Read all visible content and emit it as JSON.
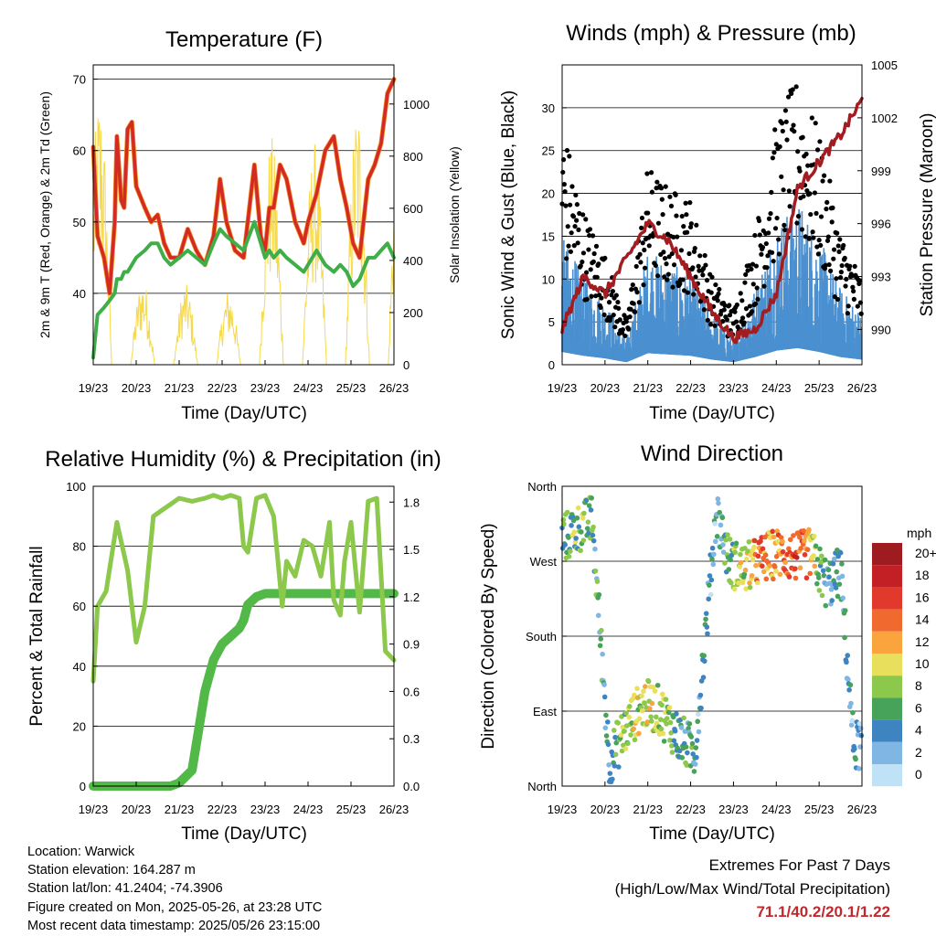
{
  "panels": {
    "temperature": {
      "title": "Temperature (F)",
      "xlabel": "Time (Day/UTC)",
      "ylabel_left": "2m & 9m T (Red, Orange) & 2m Td (Green)",
      "ylabel_right": "Solar Insolation (Yellow)"
    },
    "wind": {
      "title": "Winds (mph) & Pressure (mb)",
      "xlabel": "Time (Day/UTC)",
      "ylabel_left": "Sonic Wind & Gust (Blue, Black)",
      "ylabel_right": "Station Pressure (Maroon)"
    },
    "humidity": {
      "title": "Relative Humidity (%) & Precipitation (in)",
      "xlabel": "Time (Day/UTC)",
      "ylabel_left": "Percent & Total Rainfall"
    },
    "direction": {
      "title": "Wind Direction",
      "xlabel": "Time (Day/UTC)",
      "ylabel_left": "Direction (Colored By Speed)",
      "colorbar_title": "mph",
      "colorbar_labels": [
        "20+",
        "18",
        "16",
        "14",
        "12",
        "10",
        "8",
        "6",
        "4",
        "2",
        "0"
      ],
      "colorbar_colors": [
        "#9e1b1f",
        "#c32026",
        "#e13a2c",
        "#f0692e",
        "#f9a43c",
        "#e8e05c",
        "#8cc84b",
        "#47a35a",
        "#3d84c1",
        "#7fb6e4",
        "#bfe2f7"
      ]
    }
  },
  "info": {
    "location": "Location: Warwick",
    "elevation": "Station elevation: 164.287 m",
    "latlon": "Station lat/lon: 41.2404; -74.3906",
    "created": "Figure created on Mon, 2025-05-26, at 23:28 UTC",
    "recent": "Most recent data timestamp: 2025/05/26 23:15:00"
  },
  "extremes": {
    "title": "Extremes For Past 7 Days",
    "subtitle": "(High/Low/Max Wind/Total Precipitation)",
    "values": "71.1/40.2/20.1/1.22"
  },
  "colors": {
    "temp_2m": "#d42a24",
    "temp_9m": "#f28a1e",
    "dewpoint": "#3fae49",
    "solar": "#f7d948",
    "gust": "#000000",
    "wind": "#4a90d0",
    "pressure": "#a11d22",
    "rh": "#8cc84b",
    "precip": "#52b848"
  },
  "chart_data": [
    {
      "type": "line",
      "title": "Temperature (F)",
      "xlabel": "Time (Day/UTC)",
      "ylabel": "2m & 9m T (Red, Orange) & 2m Td (Green)",
      "ylabel_right": "Solar Insolation (Yellow)",
      "x_ticks": [
        "19/23",
        "20/23",
        "21/23",
        "22/23",
        "23/23",
        "24/23",
        "25/23",
        "26/23"
      ],
      "ylim": [
        30,
        72
      ],
      "y_ticks": [
        40,
        50,
        60,
        70
      ],
      "y2lim": [
        0,
        1150
      ],
      "y2_ticks": [
        0,
        200,
        400,
        600,
        800,
        1000
      ],
      "grid": true,
      "x_days": [
        0,
        0.1,
        0.25,
        0.38,
        0.5,
        0.55,
        0.65,
        0.72,
        0.8,
        0.9,
        1.0,
        1.2,
        1.35,
        1.5,
        1.65,
        1.8,
        2.0,
        2.2,
        2.4,
        2.6,
        2.8,
        2.95,
        3.1,
        3.3,
        3.5,
        3.75,
        3.9,
        4.0,
        4.1,
        4.2,
        4.35,
        4.5,
        4.7,
        4.9,
        5.0,
        5.2,
        5.4,
        5.6,
        5.75,
        5.9,
        6.05,
        6.2,
        6.4,
        6.55,
        6.7,
        6.85,
        7.0
      ],
      "series": [
        {
          "name": "2m T",
          "values": [
            60.5,
            48,
            45,
            40,
            50,
            62,
            53,
            52,
            63,
            64,
            55,
            52,
            50,
            51,
            47,
            45,
            45,
            49,
            46,
            44,
            48,
            56,
            50,
            46,
            45,
            58,
            48,
            46,
            52,
            52,
            58,
            56,
            50,
            47,
            50,
            54,
            60,
            62,
            56,
            52,
            47,
            45,
            56,
            58,
            61,
            68,
            70
          ]
        },
        {
          "name": "9m T",
          "values": [
            60.5,
            48,
            45,
            40,
            50,
            62,
            53,
            52,
            63,
            64,
            55,
            52,
            50,
            51,
            47,
            45,
            45,
            49,
            46,
            44,
            48,
            56,
            50,
            46,
            45,
            58,
            48,
            46,
            52,
            52,
            58,
            56,
            50,
            47,
            50,
            54,
            60,
            62,
            56,
            52,
            47,
            45,
            56,
            58,
            61,
            68,
            70
          ]
        },
        {
          "name": "2m Td",
          "values": [
            31,
            37,
            38,
            39,
            40,
            42,
            42,
            43,
            43,
            44,
            45,
            46,
            47,
            47,
            45,
            44,
            45,
            46,
            45,
            44,
            47,
            49,
            48,
            47,
            46,
            50,
            47,
            45,
            46,
            45,
            46,
            45,
            44,
            43,
            44,
            46,
            44,
            43,
            44,
            43,
            41,
            42,
            45,
            45,
            46,
            47,
            45
          ]
        }
      ]
    },
    {
      "type": "scatter",
      "title": "Winds (mph) & Pressure (mb)",
      "xlabel": "Time (Day/UTC)",
      "ylabel": "Sonic Wind & Gust (Blue, Black)",
      "ylabel_right": "Station Pressure (Maroon)",
      "x_ticks": [
        "19/23",
        "20/23",
        "21/23",
        "22/23",
        "23/23",
        "24/23",
        "25/23",
        "26/23"
      ],
      "ylim": [
        0,
        35
      ],
      "y_ticks": [
        0,
        5,
        10,
        15,
        20,
        25,
        30
      ],
      "y2lim": [
        988,
        1005
      ],
      "y2_ticks": [
        990,
        993,
        996,
        999,
        1002,
        1005
      ],
      "grid": true,
      "x_days": [
        0,
        0.5,
        1.0,
        1.5,
        2.0,
        2.5,
        3.0,
        3.5,
        4.0,
        4.5,
        5.0,
        5.5,
        6.0,
        6.5,
        7.0
      ],
      "series": [
        {
          "name": "Gust",
          "values": [
            22,
            14,
            10,
            4,
            18,
            16,
            15,
            8,
            5,
            12,
            22,
            26,
            21,
            12,
            8
          ]
        },
        {
          "name": "Wind",
          "values": [
            10,
            7,
            5,
            2,
            9,
            8,
            7,
            4,
            2,
            6,
            11,
            13,
            10,
            6,
            4
          ]
        },
        {
          "name": "Pressure",
          "values": [
            990,
            993,
            992,
            994,
            996,
            995,
            993,
            991,
            989.5,
            990,
            992,
            998,
            999.5,
            1001,
            1003
          ]
        }
      ]
    },
    {
      "type": "line",
      "title": "Relative Humidity (%) & Precipitation (in)",
      "xlabel": "Time (Day/UTC)",
      "ylabel": "Percent & Total Rainfall",
      "x_ticks": [
        "19/23",
        "20/23",
        "21/23",
        "22/23",
        "23/23",
        "24/23",
        "25/23",
        "26/23"
      ],
      "ylim": [
        0,
        100
      ],
      "y_ticks": [
        0,
        20,
        40,
        60,
        80,
        100
      ],
      "y2lim": [
        0,
        1.9
      ],
      "y2_ticks": [
        0.0,
        0.3,
        0.6,
        0.9,
        1.2,
        1.5,
        1.8
      ],
      "grid": true,
      "x_days": [
        0,
        0.1,
        0.3,
        0.55,
        0.8,
        1.0,
        1.2,
        1.4,
        1.6,
        1.8,
        2.0,
        2.3,
        2.6,
        2.8,
        3.0,
        3.2,
        3.4,
        3.5,
        3.6,
        3.8,
        4.0,
        4.2,
        4.4,
        4.5,
        4.7,
        4.9,
        5.1,
        5.3,
        5.5,
        5.6,
        5.75,
        5.85,
        6.0,
        6.2,
        6.4,
        6.6,
        6.8,
        7.0
      ],
      "series": [
        {
          "name": "RH",
          "values": [
            35,
            60,
            65,
            88,
            72,
            48,
            60,
            90,
            92,
            94,
            96,
            95,
            96,
            97,
            96,
            97,
            96,
            80,
            78,
            96,
            97,
            90,
            60,
            75,
            70,
            82,
            80,
            70,
            88,
            62,
            57,
            75,
            88,
            58,
            95,
            96,
            45,
            42
          ]
        },
        {
          "name": "Precip",
          "values": [
            0,
            0,
            0,
            0,
            0,
            0,
            0,
            0,
            0,
            0,
            0.02,
            0.1,
            0.6,
            0.8,
            0.9,
            0.95,
            1.0,
            1.05,
            1.15,
            1.2,
            1.22,
            1.22,
            1.22,
            1.22,
            1.22,
            1.22,
            1.22,
            1.22,
            1.22,
            1.22,
            1.22,
            1.22,
            1.22,
            1.22,
            1.22,
            1.22,
            1.22,
            1.22
          ]
        }
      ]
    },
    {
      "type": "scatter",
      "title": "Wind Direction",
      "xlabel": "Time (Day/UTC)",
      "ylabel": "Direction (Colored By Speed)",
      "x_ticks": [
        "19/23",
        "20/23",
        "21/23",
        "22/23",
        "23/23",
        "24/23",
        "25/23",
        "26/23"
      ],
      "y_ticks": [
        "North",
        "East",
        "South",
        "West",
        "North"
      ],
      "ylim": [
        0,
        360
      ],
      "grid": true,
      "x_days": [
        0.1,
        0.4,
        0.7,
        1.1,
        1.5,
        1.9,
        2.3,
        2.7,
        3.1,
        3.6,
        3.9,
        4.2,
        4.6,
        5.0,
        5.5,
        5.8,
        6.2,
        6.5,
        6.8
      ],
      "series": [
        {
          "name": "Direction (deg)",
          "values": [
            300,
            310,
            320,
            30,
            70,
            100,
            90,
            60,
            40,
            330,
            270,
            260,
            270,
            280,
            275,
            280,
            240,
            260,
            50
          ]
        },
        {
          "name": "Speed (mph)",
          "values": [
            6,
            8,
            6,
            4,
            8,
            10,
            8,
            6,
            4,
            3,
            6,
            9,
            14,
            12,
            15,
            12,
            3,
            4,
            3
          ]
        }
      ]
    }
  ]
}
